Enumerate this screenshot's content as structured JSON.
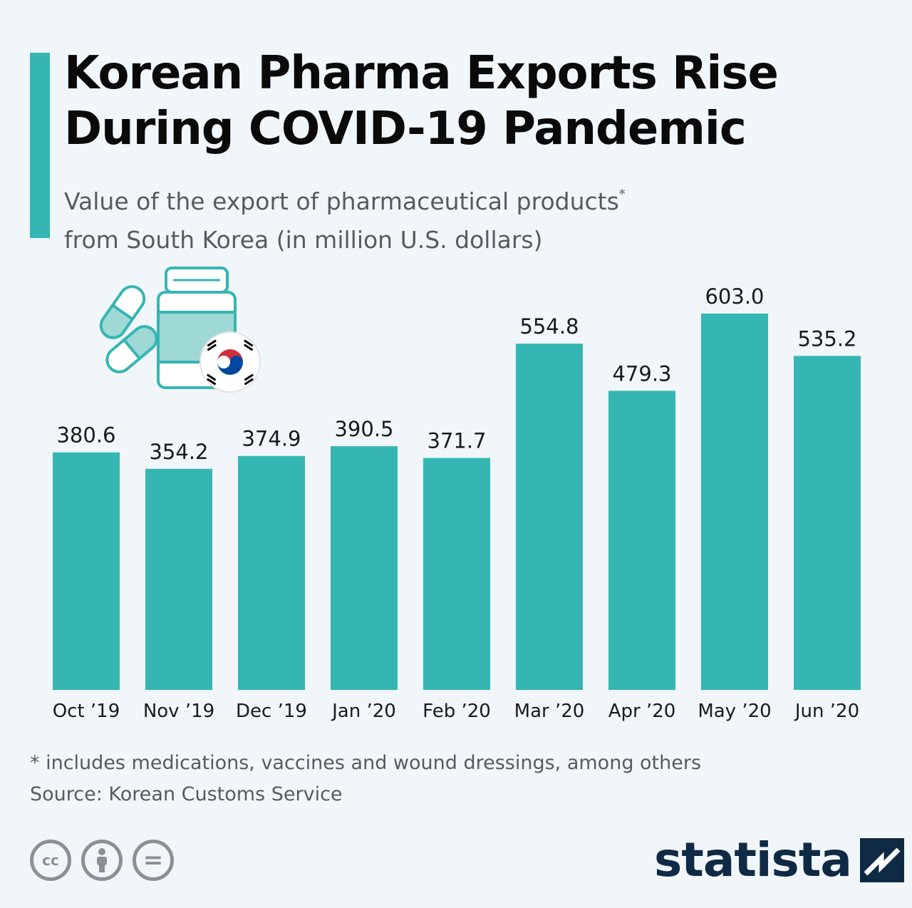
{
  "header": {
    "title_line1": "Korean Pharma Exports Rise",
    "title_line2": "During COVID-19 Pandemic",
    "subtitle_line1": "Value of the export of pharmaceutical products",
    "subtitle_asterisk": "*",
    "subtitle_line2": "from South Korea (in million U.S. dollars)"
  },
  "colors": {
    "bar": "#35b6b3",
    "accent": "#35b6b3",
    "brand": "#0f2a44",
    "background": "#f1f6fa"
  },
  "chart_data": {
    "type": "bar",
    "title": "Korean Pharma Exports Rise During COVID-19 Pandemic",
    "subtitle": "Value of the export of pharmaceutical products* from South Korea (in million U.S. dollars)",
    "categories": [
      "Oct ’19",
      "Nov ’19",
      "Dec ’19",
      "Jan ’20",
      "Feb ’20",
      "Mar ’20",
      "Apr ’20",
      "May ’20",
      "Jun ’20"
    ],
    "values": [
      380.6,
      354.2,
      374.9,
      390.5,
      371.7,
      554.8,
      479.3,
      603.0,
      535.2
    ],
    "value_labels": [
      "380.6",
      "354.2",
      "374.9",
      "390.5",
      "371.7",
      "554.8",
      "479.3",
      "603.0",
      "535.2"
    ],
    "ylim": [
      0,
      603.0
    ],
    "grid": false,
    "legend": "none"
  },
  "illustration": {
    "icons": [
      "capsule-icon",
      "medicine-bottle-icon",
      "south-korea-flag-icon"
    ]
  },
  "footer": {
    "footnote": "* includes medications, vaccines and wound dressings, among others",
    "source": "Source: Korean Customs Service",
    "license_icons": [
      "cc-icon",
      "attribution-icon",
      "no-derivatives-icon"
    ],
    "license_labels": [
      "cc",
      "",
      "="
    ],
    "brand": "statista"
  }
}
